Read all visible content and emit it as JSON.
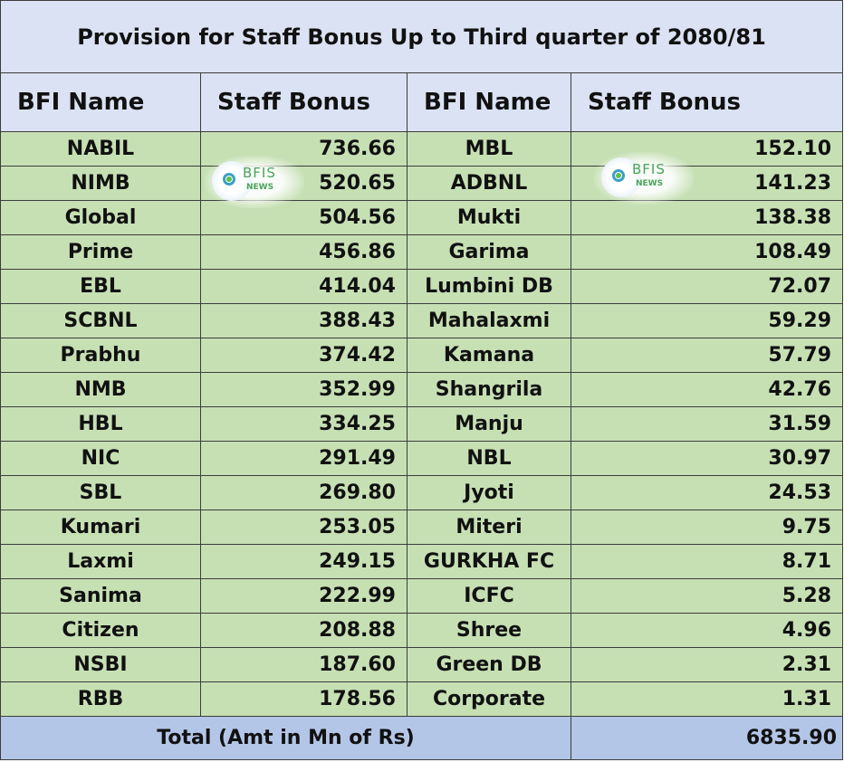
{
  "title": "Provision for Staff Bonus Up to Third quarter of 2080/81",
  "headers": {
    "col1": "BFI Name",
    "col2": "Staff Bonus",
    "col3": "BFI Name",
    "col4": "Staff Bonus"
  },
  "rows": [
    {
      "left_name": "NABIL",
      "left_value": "736.66",
      "right_name": "MBL",
      "right_value": "152.10"
    },
    {
      "left_name": "NIMB",
      "left_value": "520.65",
      "right_name": "ADBNL",
      "right_value": "141.23"
    },
    {
      "left_name": "Global",
      "left_value": "504.56",
      "right_name": "Mukti",
      "right_value": "138.38"
    },
    {
      "left_name": "Prime",
      "left_value": "456.86",
      "right_name": "Garima",
      "right_value": "108.49"
    },
    {
      "left_name": "EBL",
      "left_value": "414.04",
      "right_name": "Lumbini DB",
      "right_value": "72.07"
    },
    {
      "left_name": "SCBNL",
      "left_value": "388.43",
      "right_name": "Mahalaxmi",
      "right_value": "59.29"
    },
    {
      "left_name": "Prabhu",
      "left_value": "374.42",
      "right_name": "Kamana",
      "right_value": "57.79"
    },
    {
      "left_name": "NMB",
      "left_value": "352.99",
      "right_name": "Shangrila",
      "right_value": "42.76"
    },
    {
      "left_name": "HBL",
      "left_value": "334.25",
      "right_name": "Manju",
      "right_value": "31.59"
    },
    {
      "left_name": "NIC",
      "left_value": "291.49",
      "right_name": "NBL",
      "right_value": "30.97"
    },
    {
      "left_name": "SBL",
      "left_value": "269.80",
      "right_name": "Jyoti",
      "right_value": "24.53"
    },
    {
      "left_name": "Kumari",
      "left_value": "253.05",
      "right_name": "Miteri",
      "right_value": "9.75"
    },
    {
      "left_name": "Laxmi",
      "left_value": "249.15",
      "right_name": "GURKHA FC",
      "right_value": "8.71"
    },
    {
      "left_name": "Sanima",
      "left_value": "222.99",
      "right_name": "ICFC",
      "right_value": "5.28"
    },
    {
      "left_name": "Citizen",
      "left_value": "208.88",
      "right_name": "Shree",
      "right_value": "4.96"
    },
    {
      "left_name": "NSBI",
      "left_value": "187.60",
      "right_name": "Green DB",
      "right_value": "2.31"
    },
    {
      "left_name": "RBB",
      "left_value": "178.56",
      "right_name": "Corporate",
      "right_value": "1.31"
    }
  ],
  "total": {
    "label": "Total (Amt in Mn of Rs)",
    "amount": "6835.90"
  },
  "watermark": {
    "text": "BFIS",
    "sub": "NEWS",
    "icon": "bfis-news-logo-icon"
  },
  "colors": {
    "header_bg": "#dae2f3",
    "row_bg": "#c6e0b4",
    "total_bg": "#b4c6e7"
  }
}
